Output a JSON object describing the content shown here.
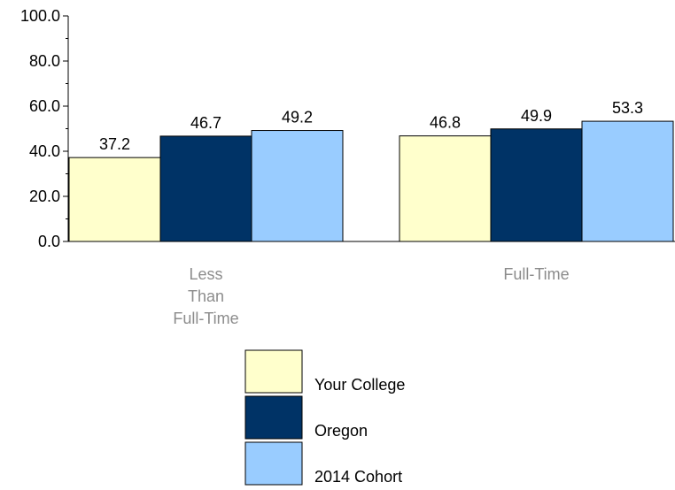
{
  "chart_data": {
    "type": "bar",
    "categories": [
      [
        "Less",
        "Than",
        "Full-Time"
      ],
      [
        "Full-Time"
      ]
    ],
    "series": [
      {
        "name": "Your College",
        "values": [
          37.2,
          46.8
        ],
        "color": "#ffffcc"
      },
      {
        "name": "Oregon",
        "values": [
          46.7,
          49.9
        ],
        "color": "#003366"
      },
      {
        "name": "2014 Cohort",
        "values": [
          49.2,
          53.3
        ],
        "color": "#99ccff"
      }
    ],
    "ylim": [
      0,
      100
    ],
    "y_ticks": [
      "0.0",
      "20.0",
      "40.0",
      "60.0",
      "80.0",
      "100.0"
    ],
    "data_labels": [
      [
        "37.2",
        "46.8"
      ],
      [
        "46.7",
        "49.9"
      ],
      [
        "49.2",
        "53.3"
      ]
    ],
    "grid": false,
    "legend": "bottom"
  }
}
